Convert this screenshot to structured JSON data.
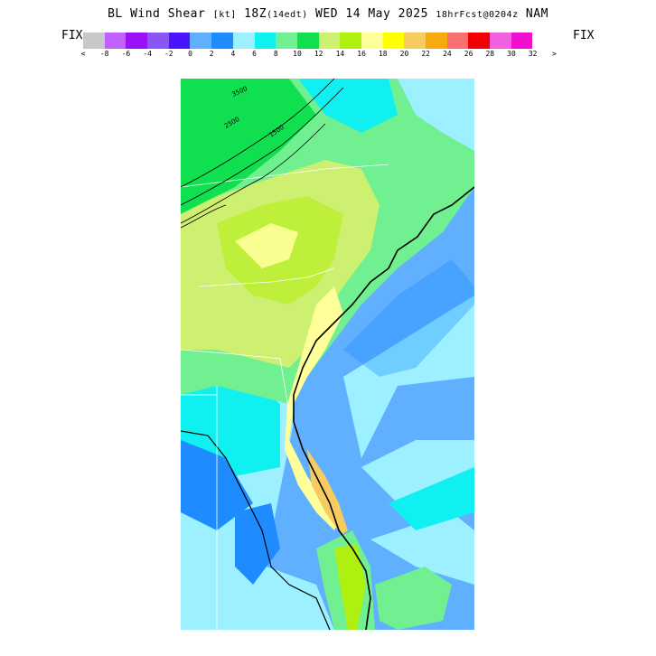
{
  "header": {
    "title_main": "BL Wind Shear ",
    "title_units": "[kt]",
    "title_time": " 18Z",
    "title_local": "(14edt)",
    "title_date": " WED 14 May 2025 ",
    "title_fcst": "18hrFcst@0204z",
    "title_model": " NAM",
    "fix_left": "FIX",
    "fix_right": "FIX"
  },
  "legend": {
    "colors": [
      "#c8c8c8",
      "#c060ff",
      "#9a10f8",
      "#8a55f5",
      "#4a14ff",
      "#60b0ff",
      "#1e8cff",
      "#9cf0ff",
      "#10f0f0",
      "#70f090",
      "#10e050",
      "#cef070",
      "#b0f010",
      "#ffff9a",
      "#ffff00",
      "#f6cc60",
      "#f6aa10",
      "#fa7070",
      "#f00000",
      "#f060e0",
      "#f010d0"
    ],
    "tick_labels": [
      "<",
      "-8",
      "-6",
      "-4",
      "-2",
      "0",
      "2",
      "4",
      "6",
      "8",
      "10",
      "12",
      "14",
      "16",
      "18",
      "20",
      "22",
      "24",
      "26",
      "28",
      "30",
      "32",
      ">"
    ]
  },
  "map": {
    "contour_labels": [
      "3500",
      "2500",
      "1500"
    ]
  }
}
